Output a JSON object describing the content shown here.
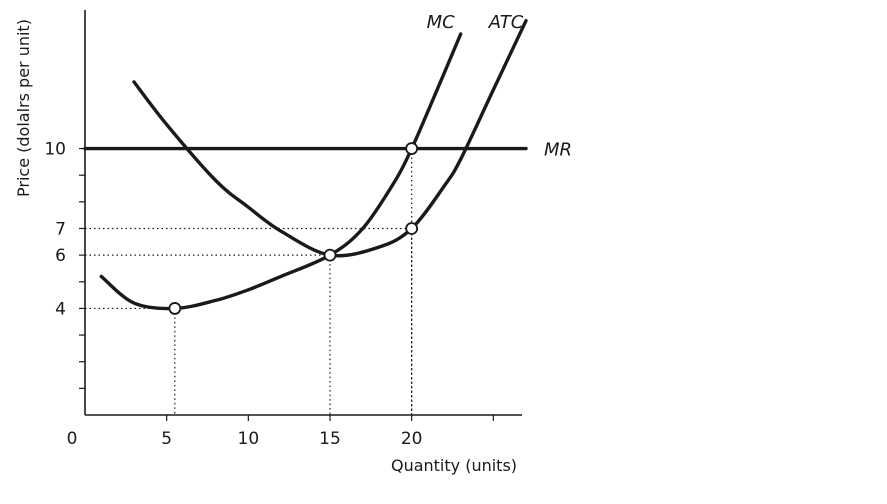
{
  "chart_data": {
    "type": "line",
    "xlabel": "Quantity (units)",
    "ylabel": "Price (dolalrs per unit)",
    "xlim": [
      0,
      27
    ],
    "ylim": [
      0,
      15.2
    ],
    "x_ticks": [
      {
        "value": 0,
        "label": "0"
      },
      {
        "value": 5,
        "label": "5"
      },
      {
        "value": 10,
        "label": "10"
      },
      {
        "value": 15,
        "label": "15"
      },
      {
        "value": 20,
        "label": "20"
      }
    ],
    "x_minor_ticks": [
      5,
      10,
      15,
      20,
      25
    ],
    "y_ticks": [
      {
        "value": 4,
        "label": "4"
      },
      {
        "value": 6,
        "label": "6"
      },
      {
        "value": 7,
        "label": "7"
      },
      {
        "value": 10,
        "label": "10"
      }
    ],
    "y_minor_ticks": [
      1,
      2,
      3,
      4,
      5,
      6,
      7,
      8,
      9,
      10
    ],
    "grid": false,
    "series": [
      {
        "name": "MC",
        "x": [
          1.0,
          3.0,
          5.5,
          8.0,
          10.0,
          12.0,
          15.0,
          17.0,
          19.0,
          20.0,
          21.0,
          23.0
        ],
        "y": [
          5.2,
          4.2,
          4.0,
          4.3,
          4.7,
          5.2,
          6.0,
          7.0,
          8.8,
          10.0,
          11.4,
          14.3
        ]
      },
      {
        "name": "ATC",
        "x": [
          3.0,
          5.0,
          8.0,
          10.0,
          12.0,
          15.0,
          18.0,
          20.0,
          22.0,
          23.0,
          25.0,
          27.0
        ],
        "y": [
          12.5,
          10.9,
          8.8,
          7.8,
          6.9,
          6.0,
          6.3,
          7.0,
          8.6,
          9.6,
          12.2,
          14.8
        ]
      },
      {
        "name": "MR",
        "x": [
          0,
          27
        ],
        "y": [
          10,
          10
        ]
      }
    ],
    "highlight_points": [
      {
        "x": 5.5,
        "y": 4
      },
      {
        "x": 15,
        "y": 6
      },
      {
        "x": 20,
        "y": 7
      },
      {
        "x": 20,
        "y": 10
      }
    ]
  }
}
